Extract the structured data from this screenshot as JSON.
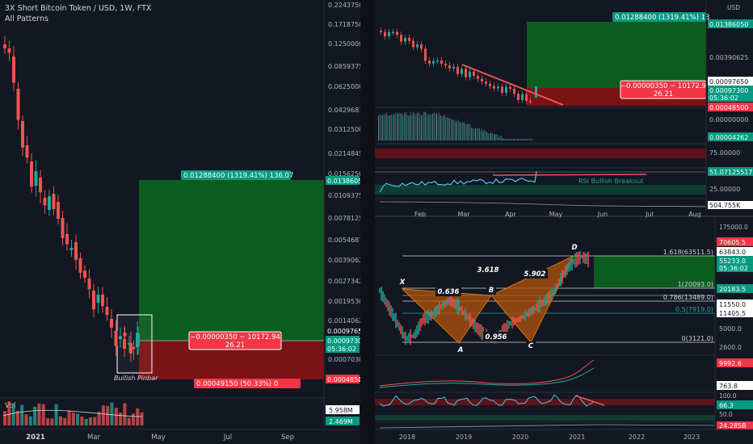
{
  "header": {
    "title": "3X Short Bitcoin Token / USD, 1W, FTX",
    "indicator": "All Patterns"
  },
  "colors": {
    "background": "#131722",
    "up": "#26a69a",
    "down": "#ef5350",
    "profit_zone": "#0d5c1f",
    "loss_zone": "#7a1316",
    "label_green": "#089981",
    "label_red": "#f23645",
    "axis_text": "#b2b5be",
    "pattern": "#b45309"
  },
  "left_chart": {
    "price_axis": [
      "0.22437500",
      "0.17187500",
      "0.12500000",
      "0.08593750",
      "0.06250000",
      "0.04296875",
      "0.03125000",
      "0.02148450",
      "0.01562500",
      "0.01093750",
      "0.00781250",
      "0.00546875",
      "0.00390625",
      "0.00273425",
      "0.00195300",
      "0.00140625",
      "0.00097650",
      "0.00070300",
      "0.00048500"
    ],
    "price_badges": {
      "target": "0.01386050",
      "entry": "0.00097650",
      "current": "0.00097300",
      "countdown": "05:36:02",
      "stop": "0.00048500"
    },
    "time_axis": [
      "2021",
      "Mar",
      "May",
      "Jul",
      "Sep"
    ],
    "profit_label": "0.01288400 (1319.41%) 136.07",
    "mid_label_line1": "−0.00000350 ~ 10172.94",
    "mid_label_line2": "26.21",
    "loss_label": "0.00049150 (50.33%) 0",
    "pattern_label": "Bullish Pinbar",
    "volume_title": "Vol",
    "volume_axis": [
      "5.958M",
      "2.469M"
    ]
  },
  "top_right_chart": {
    "price_axis": [
      "USD",
      "0.01386050",
      "0.00390625",
      "0.00097650",
      "0.00097300",
      "05:36:02",
      "0.00048500",
      "0.00000000",
      "0.00004262"
    ],
    "profit_label": "0.01288400 (1319.41%) 13",
    "mid_label_line1": "−0.00000350 ~ 10172.9",
    "mid_label_line2": "26.21",
    "rsi_axis": [
      "75.00000",
      "51.07125517",
      "25.00000",
      "504.755K"
    ],
    "rsi_annotation": "RSI Bullish Breakout",
    "time_axis": [
      "Feb",
      "Mar",
      "Apr",
      "May",
      "Jun",
      "Jul",
      "Aug"
    ]
  },
  "bottom_right_chart": {
    "price_axis": [
      "175000.0",
      "70605.5",
      "63843.0",
      "55233.0",
      "05:36:02",
      "20183.5",
      "11550.0",
      "11405.5",
      "5000.0",
      "2600.0",
      "9992.6",
      "763.8",
      "100.0",
      "66.3",
      "50.0",
      "24.285B"
    ],
    "fib_levels": [
      "1.618(63511.5)",
      "1(20093.0)",
      "0.786(13489.0)",
      "0.5(7919.0)",
      "0(3121.0)"
    ],
    "pattern_points": [
      "X",
      "A",
      "B",
      "C",
      "D"
    ],
    "ratios": [
      "0.636",
      "3.618",
      "5.902",
      "0.956"
    ],
    "time_axis": [
      "2018",
      "2019",
      "2020",
      "2021",
      "2022",
      "2023"
    ]
  }
}
